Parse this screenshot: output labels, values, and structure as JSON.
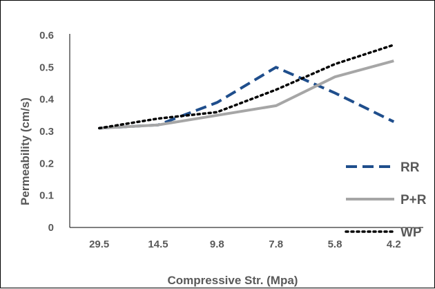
{
  "chart_data": {
    "type": "line",
    "title": "",
    "xlabel": "Compressive Str. (Mpa)",
    "ylabel": "Permeability (cm/s)",
    "categories": [
      "29.5",
      "14.5",
      "9.8",
      "7.8",
      "5.8",
      "4.2"
    ],
    "ylim": [
      0,
      0.6
    ],
    "yticks": [
      "0",
      "0.1",
      "0.2",
      "0.3",
      "0.4",
      "0.5",
      "0.6"
    ],
    "grid": false,
    "legend_position": "bottom-right",
    "series": [
      {
        "name": "RR",
        "values": [
          0.31,
          0.32,
          0.39,
          0.5,
          0.42,
          0.33
        ],
        "color": "#1f4e8c",
        "style": "dashed"
      },
      {
        "name": "P+R",
        "values": [
          0.31,
          0.32,
          0.35,
          0.38,
          0.47,
          0.52
        ],
        "color": "#a6a6a6",
        "style": "solid"
      },
      {
        "name": "WP",
        "values": [
          0.31,
          0.34,
          0.36,
          0.43,
          0.51,
          0.57
        ],
        "color": "#000000",
        "style": "dotted"
      }
    ]
  }
}
